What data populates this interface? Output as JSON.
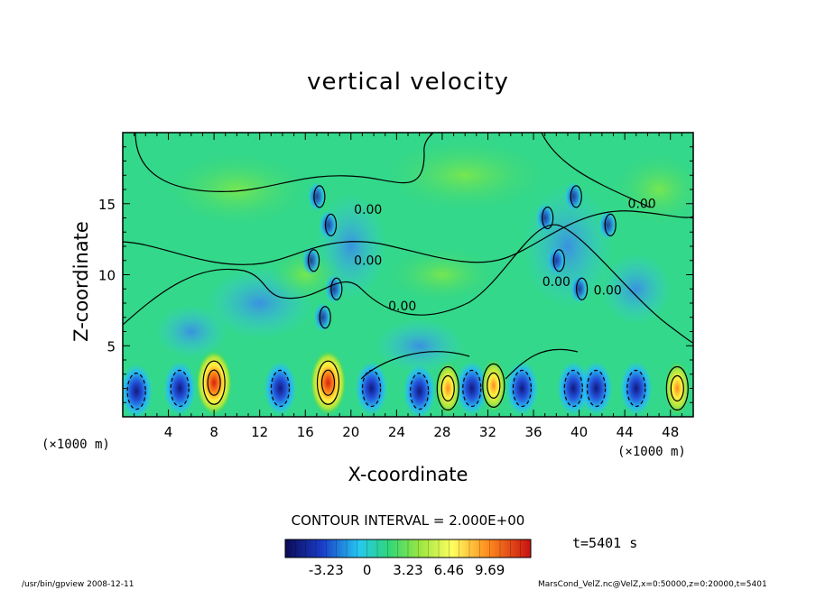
{
  "chart_data": {
    "type": "heatmap",
    "title": "vertical velocity",
    "xlabel": "X-coordinate",
    "ylabel": "Z-coordinate",
    "x_unit": "(×1000 m)",
    "x_unit_right": "(×1000 m)",
    "xlim": [
      0,
      50
    ],
    "ylim": [
      0,
      20
    ],
    "x_ticks": [
      "4",
      "8",
      "12",
      "16",
      "20",
      "24",
      "28",
      "32",
      "36",
      "40",
      "44",
      "48"
    ],
    "y_ticks": [
      "5",
      "10",
      "15"
    ],
    "contour_labels": [
      {
        "text": "0.00",
        "x": 21.5,
        "z": 10.7
      },
      {
        "text": "0.00",
        "x": 21.5,
        "z": 14.3
      },
      {
        "text": "0.00",
        "x": 24.5,
        "z": 7.5
      },
      {
        "text": "0.00",
        "x": 38.0,
        "z": 9.2
      },
      {
        "text": "0.00",
        "x": 45.5,
        "z": 14.7
      },
      {
        "text": "0.00",
        "x": 42.5,
        "z": 8.6
      }
    ],
    "updrafts": [
      {
        "x": 8.0,
        "z": 2.4,
        "peak": 9.69
      },
      {
        "x": 18.0,
        "z": 2.4,
        "peak": 9.69
      },
      {
        "x": 28.5,
        "z": 2.0,
        "peak": 6.46
      },
      {
        "x": 32.5,
        "z": 2.2,
        "peak": 6.46
      },
      {
        "x": 48.6,
        "z": 2.0,
        "peak": 6.46
      }
    ],
    "downdrafts": [
      {
        "x": 1.2,
        "z": 1.8
      },
      {
        "x": 5.0,
        "z": 2.0
      },
      {
        "x": 13.8,
        "z": 2.0
      },
      {
        "x": 21.8,
        "z": 2.0
      },
      {
        "x": 26.0,
        "z": 1.8
      },
      {
        "x": 30.6,
        "z": 2.0
      },
      {
        "x": 35.0,
        "z": 2.0
      },
      {
        "x": 39.5,
        "z": 2.0
      },
      {
        "x": 41.5,
        "z": 2.0
      },
      {
        "x": 45.0,
        "z": 2.0
      }
    ],
    "colorbar": {
      "tick_labels": [
        "-3.23",
        "0",
        "3.23",
        "6.46",
        "9.69"
      ],
      "tick_values": [
        -3.23,
        0,
        3.23,
        6.46,
        9.69
      ],
      "range": [
        -6.46,
        12.92
      ]
    }
  },
  "contour_interval": "CONTOUR INTERVAL = 2.000E+00",
  "time_label": "t=5401 s",
  "footer_left": "/usr/bin/gpview   2008-12-11",
  "footer_right": "MarsCond_VelZ.nc@VelZ,x=0:50000,z=0:20000,t=5401"
}
